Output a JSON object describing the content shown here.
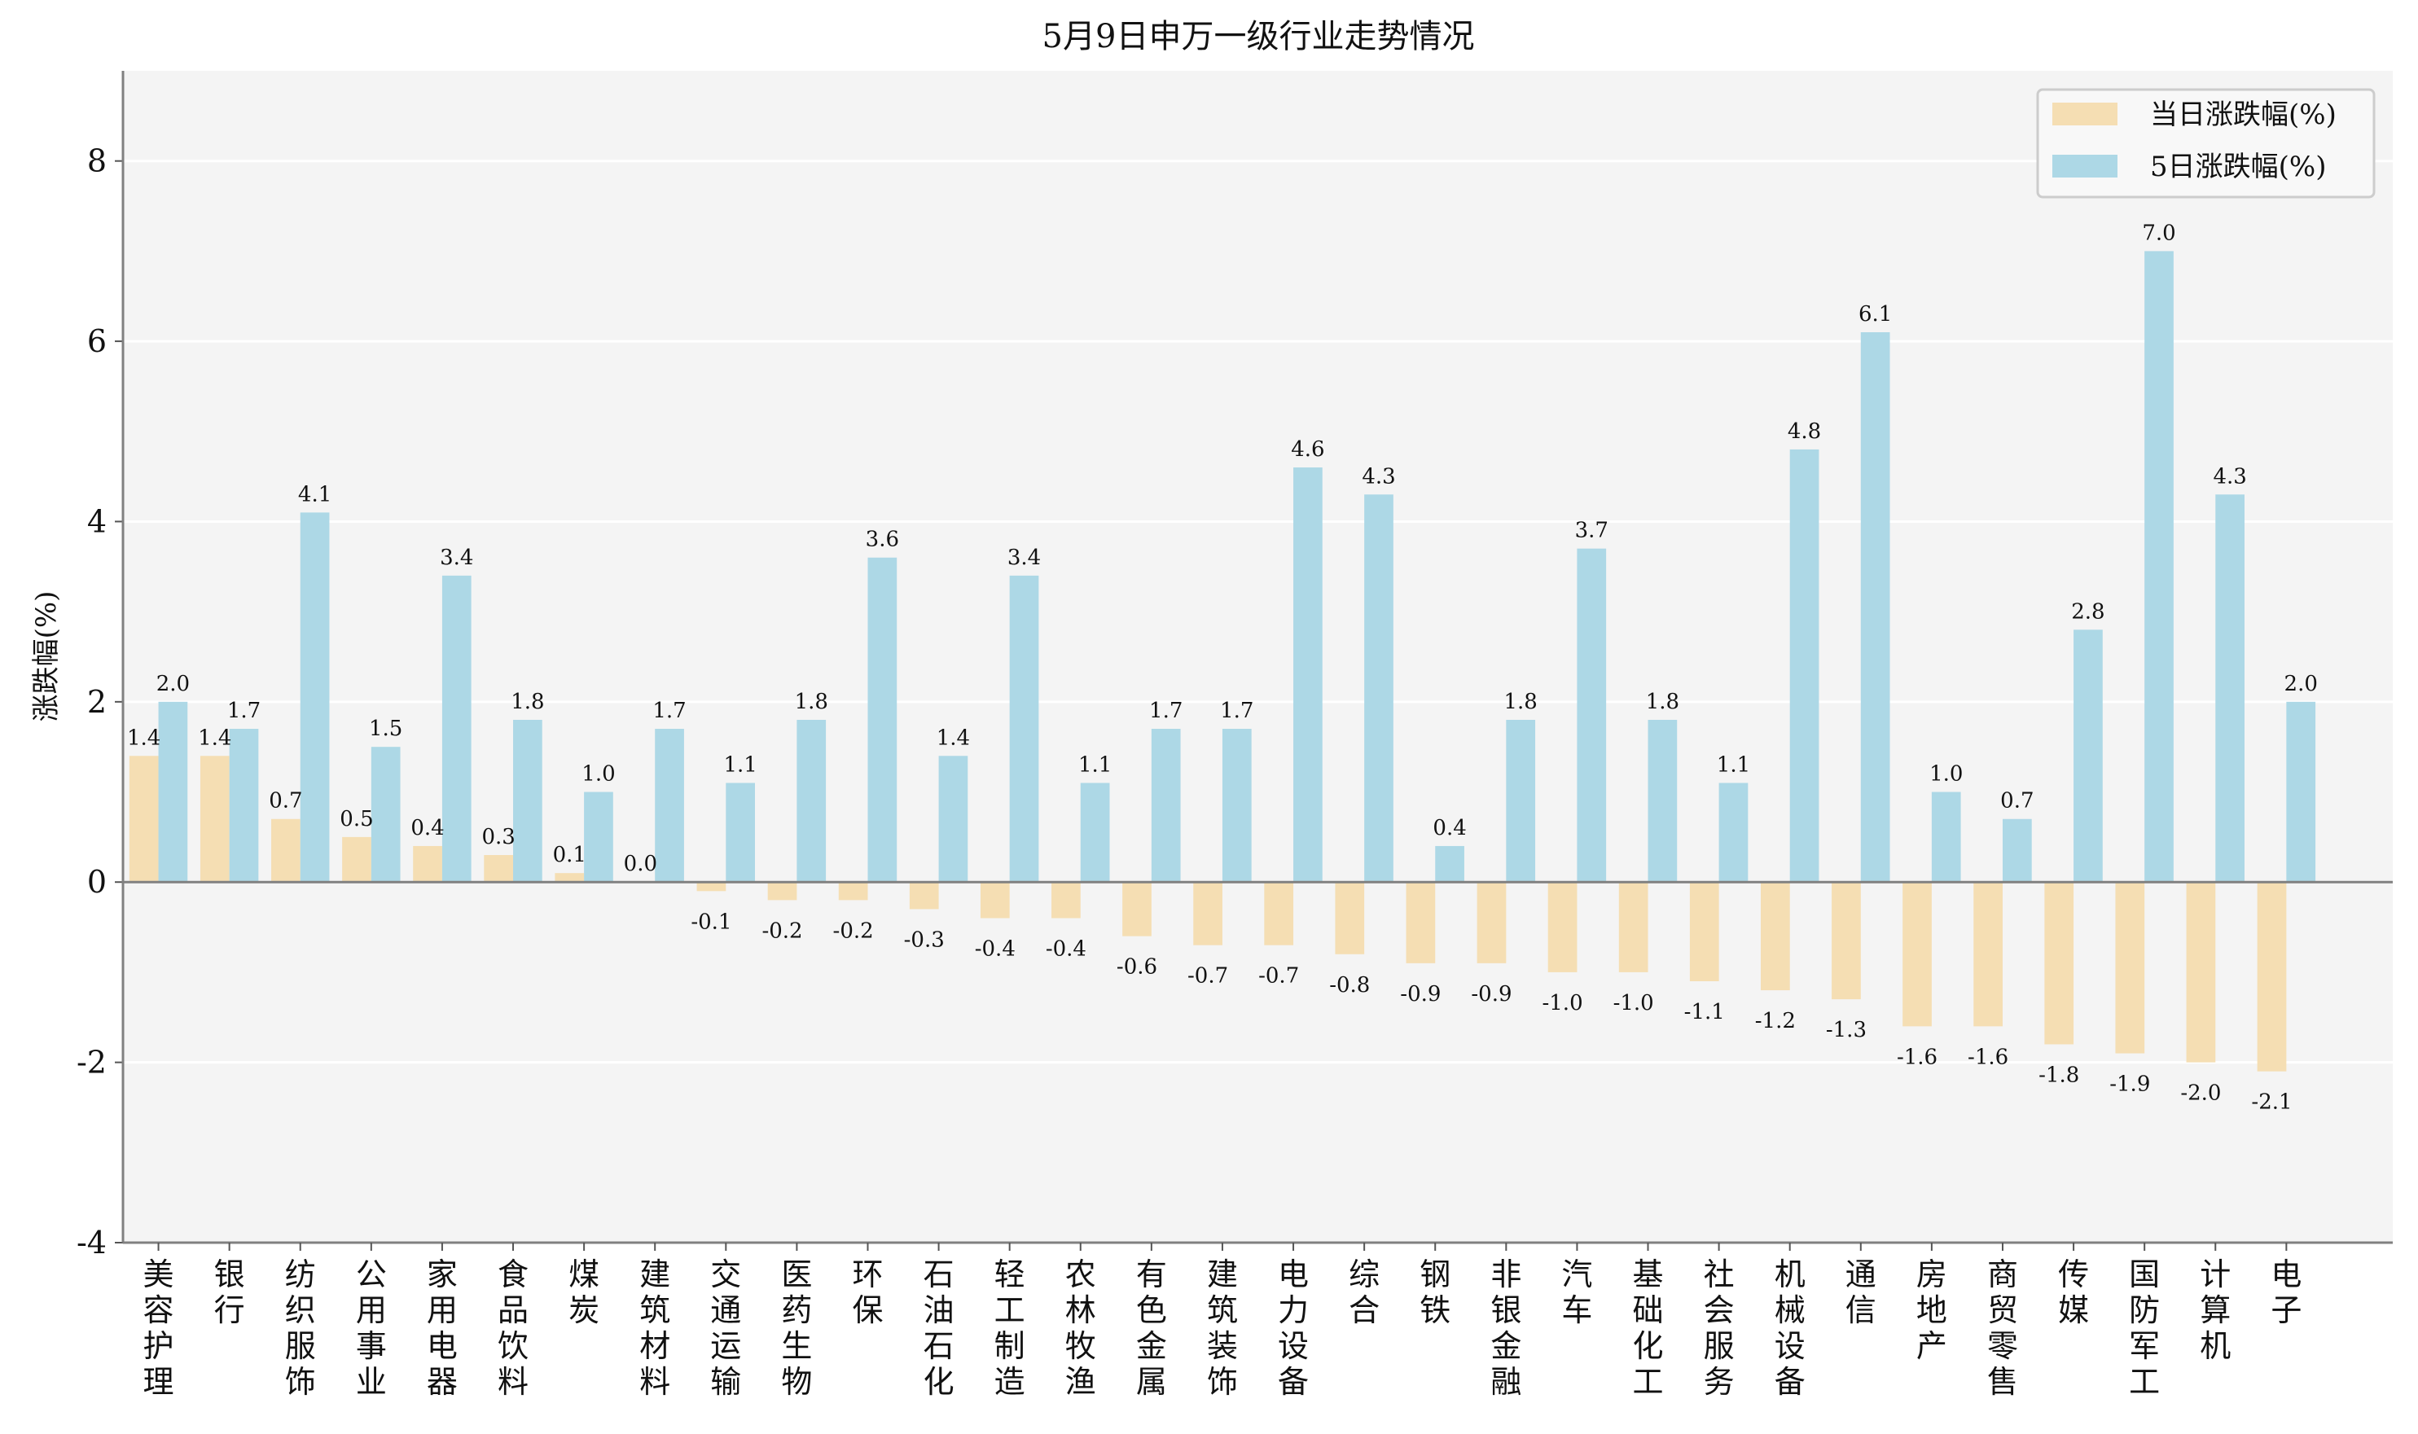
{
  "chart_data": {
    "type": "bar",
    "title": "5月9日申万一级行业走势情况",
    "xlabel": "",
    "ylabel": "涨跌幅(%)",
    "ylim": [
      -4,
      9
    ],
    "yticks": [
      -4,
      -2,
      0,
      2,
      4,
      6,
      8
    ],
    "grid": "horizontal",
    "legend_position": "top-right",
    "categories": [
      "美容护理",
      "银行",
      "纺织服饰",
      "公用事业",
      "家用电器",
      "食品饮料",
      "煤炭",
      "建筑材料",
      "交通运输",
      "医药生物",
      "环保",
      "石油石化",
      "轻工制造",
      "农林牧渔",
      "有色金属",
      "建筑装饰",
      "电力设备",
      "综合",
      "钢铁",
      "非银金融",
      "汽车",
      "基础化工",
      "社会服务",
      "机械设备",
      "通信",
      "房地产",
      "商贸零售",
      "传媒",
      "国防军工",
      "计算机",
      "电子"
    ],
    "series": [
      {
        "name": "当日涨跌幅(%)",
        "color": "#f5deb3",
        "values": [
          1.4,
          1.4,
          0.7,
          0.5,
          0.4,
          0.3,
          0.1,
          0.0,
          -0.1,
          -0.2,
          -0.2,
          -0.3,
          -0.4,
          -0.4,
          -0.6,
          -0.7,
          -0.7,
          -0.8,
          -0.9,
          -0.9,
          -1.0,
          -1.0,
          -1.1,
          -1.2,
          -1.3,
          -1.6,
          -1.6,
          -1.8,
          -1.9,
          -2.0,
          -2.1
        ]
      },
      {
        "name": "5日涨跌幅(%)",
        "color": "#add8e6",
        "values": [
          2.0,
          1.7,
          4.1,
          1.5,
          3.4,
          1.8,
          1.0,
          1.7,
          1.1,
          1.8,
          3.6,
          1.4,
          3.4,
          1.1,
          1.7,
          1.7,
          4.6,
          4.3,
          0.4,
          1.8,
          3.7,
          1.8,
          1.1,
          4.8,
          6.1,
          1.0,
          0.7,
          2.8,
          7.0,
          4.3,
          2.0
        ]
      }
    ]
  }
}
